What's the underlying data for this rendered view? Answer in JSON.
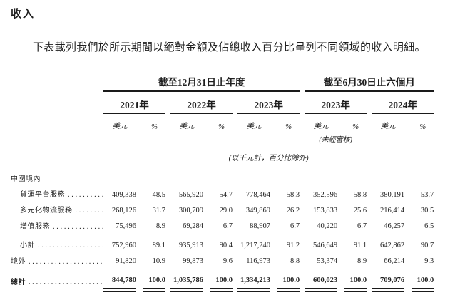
{
  "page": {
    "title": "收入",
    "intro": "下表載列我們於所示期間以絕對金額及佔總收入百分比呈列不同領域的收入明細。"
  },
  "table": {
    "period_groups": [
      {
        "label": "截至12月31日止年度",
        "years": [
          "2021年",
          "2022年",
          "2023年"
        ]
      },
      {
        "label": "截至6月30日止六個月",
        "years": [
          "2023年",
          "2024年"
        ]
      }
    ],
    "measure_headers": {
      "currency": "美元",
      "percent": "%"
    },
    "unaudited_note": "(未經審核)",
    "unit_note": "(以千元計，百分比除外)",
    "rows": [
      {
        "label": "中國境內",
        "indent": 0,
        "dots": false,
        "values": []
      },
      {
        "label": "貨運平台服務",
        "indent": 1,
        "dots": true,
        "values": [
          "409,338",
          "48.5",
          "565,920",
          "54.7",
          "778,464",
          "58.3",
          "352,596",
          "58.8",
          "380,191",
          "53.7"
        ]
      },
      {
        "label": "多元化物流服務",
        "indent": 1,
        "dots": true,
        "values": [
          "268,126",
          "31.7",
          "300,709",
          "29.0",
          "349,869",
          "26.2",
          "153,833",
          "25.6",
          "216,414",
          "30.5"
        ]
      },
      {
        "label": "增值服務",
        "indent": 1,
        "dots": true,
        "rule_below": "single",
        "values": [
          "75,496",
          "8.9",
          "69,284",
          "6.7",
          "88,907",
          "6.7",
          "40,220",
          "6.7",
          "46,257",
          "6.5"
        ]
      },
      {
        "label": "小計",
        "indent": 1,
        "dots": true,
        "space_above": true,
        "values": [
          "752,960",
          "89.1",
          "935,913",
          "90.4",
          "1,217,240",
          "91.2",
          "546,649",
          "91.1",
          "642,862",
          "90.7"
        ]
      },
      {
        "label": "境外",
        "indent": 0,
        "dots": true,
        "rule_below": "single",
        "values": [
          "91,820",
          "10.9",
          "99,873",
          "9.6",
          "116,973",
          "8.8",
          "53,374",
          "8.9",
          "66,214",
          "9.3"
        ]
      },
      {
        "label": "總計",
        "indent": 0,
        "dots": true,
        "bold": true,
        "space_above": true,
        "rule_below": "double",
        "values": [
          "844,780",
          "100.0",
          "1,035,786",
          "100.0",
          "1,334,213",
          "100.0",
          "600,023",
          "100.0",
          "709,076",
          "100.0"
        ]
      }
    ]
  },
  "colors": {
    "text": "#1f1f1f",
    "rule_dark": "#1a1a1a",
    "rule_light": "#757575"
  }
}
